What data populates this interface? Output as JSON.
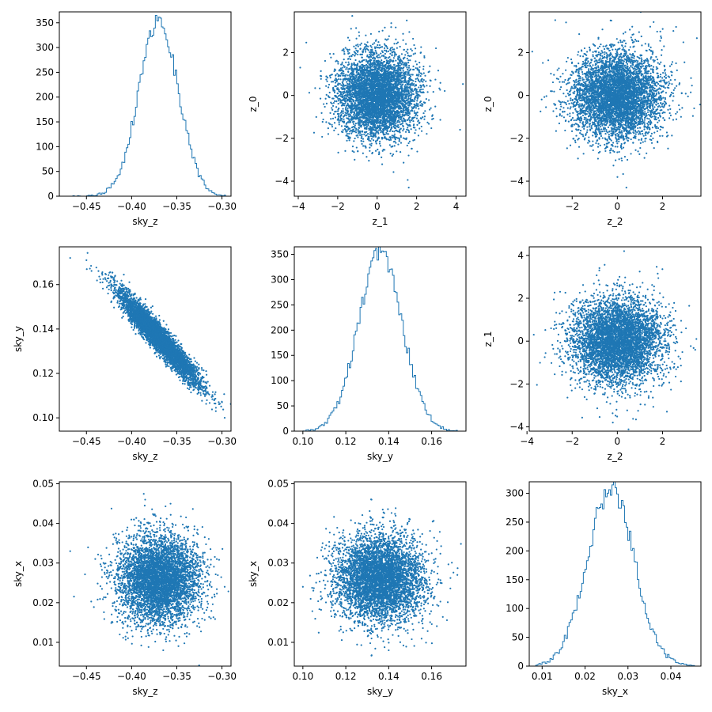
{
  "style": {
    "series_color": "#1f77b4",
    "axis_color": "#000000",
    "background": "#ffffff"
  },
  "chart_data": [
    {
      "id": "p00",
      "type": "histogram",
      "xlabel": "sky_z",
      "ylabel": "",
      "xlim": [
        -0.48,
        -0.29
      ],
      "ylim": [
        0,
        372
      ],
      "xticks": [
        -0.45,
        -0.4,
        -0.35,
        -0.3
      ],
      "xticklabels": [
        "−0.45",
        "−0.40",
        "−0.35",
        "−0.30"
      ],
      "yticks": [
        0,
        50,
        100,
        150,
        200,
        250,
        300,
        350
      ],
      "yticklabels": [
        "0",
        "50",
        "100",
        "150",
        "200",
        "250",
        "300",
        "350"
      ],
      "bins": {
        "start": -0.465,
        "end": -0.296,
        "count": 100,
        "peak_center": -0.37,
        "peak_height": 355,
        "sigma": 0.022
      }
    },
    {
      "id": "p01",
      "type": "scatter",
      "xlabel": "z_1",
      "ylabel": "z_0",
      "xlim": [
        -4.2,
        4.5
      ],
      "ylim": [
        -4.7,
        3.9
      ],
      "xticks": [
        -4,
        -2,
        0,
        2,
        4
      ],
      "xticklabels": [
        "−4",
        "−2",
        "0",
        "2",
        "4"
      ],
      "yticks": [
        -4,
        -2,
        0,
        2
      ],
      "yticklabels": [
        "−4",
        "−2",
        "0",
        "2"
      ],
      "cloud": {
        "mean": [
          0,
          0
        ],
        "sd": [
          1,
          1
        ],
        "corr": 0,
        "n": 5000
      },
      "outliers": [
        [
          4.2,
          -1.6
        ],
        [
          1.5,
          3.5
        ],
        [
          1.6,
          -4.3
        ],
        [
          -3.9,
          1.3
        ]
      ]
    },
    {
      "id": "p02",
      "type": "scatter",
      "xlabel": "z_2",
      "ylabel": "z_0",
      "xlim": [
        -3.9,
        3.7
      ],
      "ylim": [
        -4.7,
        3.9
      ],
      "xticks": [
        -2,
        0,
        2
      ],
      "xticklabels": [
        "−2",
        "0",
        "2"
      ],
      "yticks": [
        -4,
        -2,
        0,
        2
      ],
      "yticklabels": [
        "−4",
        "−2",
        "0",
        "2"
      ],
      "cloud": {
        "mean": [
          0,
          0
        ],
        "sd": [
          1,
          1
        ],
        "corr": 0,
        "n": 5000
      },
      "outliers": [
        [
          -0.3,
          3.5
        ],
        [
          0.4,
          -4.3
        ],
        [
          2.6,
          3.2
        ],
        [
          3.4,
          -0.6
        ]
      ]
    },
    {
      "id": "p10",
      "type": "scatter",
      "xlabel": "sky_z",
      "ylabel": "sky_y",
      "xlim": [
        -0.48,
        -0.29
      ],
      "ylim": [
        0.094,
        0.177
      ],
      "xticks": [
        -0.45,
        -0.4,
        -0.35,
        -0.3
      ],
      "xticklabels": [
        "−0.45",
        "−0.40",
        "−0.35",
        "−0.30"
      ],
      "yticks": [
        0.1,
        0.12,
        0.14,
        0.16
      ],
      "yticklabels": [
        "0.10",
        "0.12",
        "0.14",
        "0.16"
      ],
      "cloud": {
        "mean": [
          -0.37,
          0.136
        ],
        "sd": [
          0.022,
          0.0103
        ],
        "corr": -0.95,
        "n": 5000
      },
      "outliers": [
        [
          -0.468,
          0.172
        ],
        [
          -0.297,
          0.1
        ],
        [
          -0.45,
          0.171
        ],
        [
          -0.3,
          0.107
        ]
      ]
    },
    {
      "id": "p11",
      "type": "histogram",
      "xlabel": "sky_y",
      "ylabel": "",
      "xlim": [
        0.096,
        0.176
      ],
      "ylim": [
        0,
        365
      ],
      "xticks": [
        0.1,
        0.12,
        0.14,
        0.16
      ],
      "xticklabels": [
        "0.10",
        "0.12",
        "0.14",
        "0.16"
      ],
      "yticks": [
        0,
        50,
        100,
        150,
        200,
        250,
        300,
        350
      ],
      "yticklabels": [
        "0",
        "50",
        "100",
        "150",
        "200",
        "250",
        "300",
        "350"
      ],
      "bins": {
        "start": 0.1,
        "end": 0.172,
        "count": 100,
        "peak_center": 0.136,
        "peak_height": 350,
        "sigma": 0.0103
      }
    },
    {
      "id": "p12",
      "type": "scatter",
      "xlabel": "z_2",
      "ylabel": "z_1",
      "xlim": [
        -3.9,
        3.7
      ],
      "ylim": [
        -4.2,
        4.4
      ],
      "xticks": [
        -4,
        -2,
        0,
        2
      ],
      "xticklabels": [
        "−4",
        "−2",
        "0",
        "2"
      ],
      "yticks": [
        -4,
        -2,
        0,
        2,
        4
      ],
      "yticklabels": [
        "−4",
        "−2",
        "0",
        "2",
        "4"
      ],
      "cloud": {
        "mean": [
          0,
          0
        ],
        "sd": [
          1,
          1
        ],
        "corr": 0,
        "n": 5000
      },
      "outliers": [
        [
          0.3,
          4.2
        ],
        [
          -3.7,
          0.3
        ],
        [
          3.5,
          0.1
        ],
        [
          -0.2,
          -3.8
        ]
      ]
    },
    {
      "id": "p20",
      "type": "scatter",
      "xlabel": "sky_z",
      "ylabel": "sky_x",
      "xlim": [
        -0.48,
        -0.29
      ],
      "ylim": [
        0.004,
        0.0505
      ],
      "xticks": [
        -0.45,
        -0.4,
        -0.35,
        -0.3
      ],
      "xticklabels": [
        "−0.45",
        "−0.40",
        "−0.35",
        "−0.30"
      ],
      "yticks": [
        0.01,
        0.02,
        0.03,
        0.04,
        0.05
      ],
      "yticklabels": [
        "0.01",
        "0.02",
        "0.03",
        "0.04",
        "0.05"
      ],
      "cloud": {
        "mean": [
          -0.37,
          0.026
        ],
        "sd": [
          0.022,
          0.0055
        ],
        "corr": 0,
        "n": 5000
      },
      "outliers": [
        [
          -0.468,
          0.033
        ],
        [
          -0.297,
          0.024
        ],
        [
          -0.385,
          0.046
        ],
        [
          -0.365,
          0.008
        ]
      ]
    },
    {
      "id": "p21",
      "type": "scatter",
      "xlabel": "sky_y",
      "ylabel": "sky_x",
      "xlim": [
        0.096,
        0.176
      ],
      "ylim": [
        0.004,
        0.0505
      ],
      "xticks": [
        0.1,
        0.12,
        0.14,
        0.16
      ],
      "xticklabels": [
        "0.10",
        "0.12",
        "0.14",
        "0.16"
      ],
      "yticks": [
        0.01,
        0.02,
        0.03,
        0.04,
        0.05
      ],
      "yticklabels": [
        "0.01",
        "0.02",
        "0.03",
        "0.04",
        "0.05"
      ],
      "cloud": {
        "mean": [
          0.136,
          0.026
        ],
        "sd": [
          0.0103,
          0.0055
        ],
        "corr": 0,
        "n": 5000
      },
      "outliers": [
        [
          0.1,
          0.024
        ],
        [
          0.172,
          0.027
        ],
        [
          0.132,
          0.046
        ],
        [
          0.14,
          0.008
        ]
      ]
    },
    {
      "id": "p22",
      "type": "histogram",
      "xlabel": "sky_x",
      "ylabel": "",
      "xlim": [
        0.007,
        0.047
      ],
      "ylim": [
        0,
        320
      ],
      "xticks": [
        0.01,
        0.02,
        0.03,
        0.04
      ],
      "xticklabels": [
        "0.01",
        "0.02",
        "0.03",
        "0.04"
      ],
      "yticks": [
        0,
        50,
        100,
        150,
        200,
        250,
        300
      ],
      "yticklabels": [
        "0",
        "50",
        "100",
        "150",
        "200",
        "250",
        "300"
      ],
      "bins": {
        "start": 0.0085,
        "end": 0.0455,
        "count": 100,
        "peak_center": 0.026,
        "peak_height": 307,
        "sigma": 0.0055
      }
    }
  ]
}
